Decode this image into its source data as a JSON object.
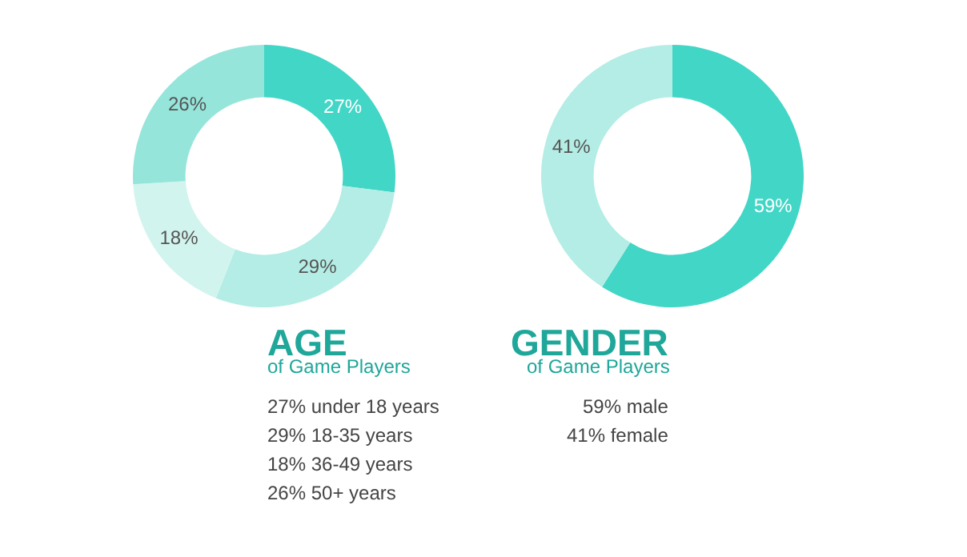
{
  "chart_data": [
    {
      "type": "donut",
      "title": "AGE",
      "subtitle": "of Game Players",
      "categories": [
        null,
        null,
        null,
        null
      ],
      "values": [
        27,
        29,
        18,
        26
      ],
      "colors": [
        "#42d6c6",
        "#b4ede5",
        "#d2f4ee",
        "#95e5da"
      ],
      "value_labels": [
        "27%",
        "29%",
        "18%",
        "26%"
      ],
      "annotations": [
        "27% under 18 years",
        "29% 18-35 years",
        "18% 36-49 years",
        "26% 50+ years"
      ]
    },
    {
      "type": "donut",
      "title": "GENDER",
      "subtitle": "of Game Players",
      "categories": [
        null,
        null
      ],
      "values": [
        59,
        41
      ],
      "colors": [
        "#42d6c6",
        "#b4ede5"
      ],
      "value_labels": [
        "59%",
        "41%"
      ],
      "annotations": [
        "59% male",
        "41% female"
      ]
    }
  ]
}
